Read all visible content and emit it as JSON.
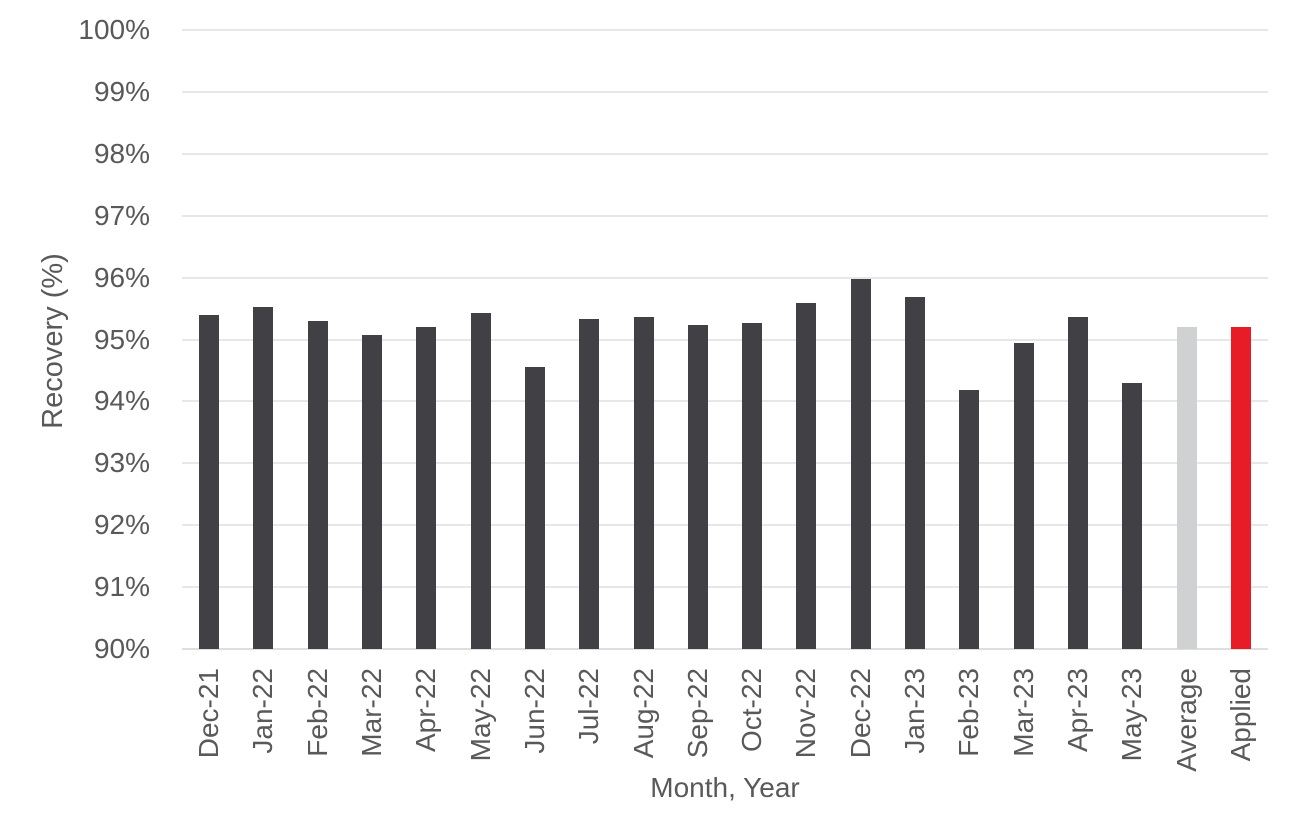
{
  "chart_data": {
    "type": "bar",
    "title": "",
    "xlabel": "Month, Year",
    "ylabel": "Recovery (%)",
    "ylim": [
      90,
      100
    ],
    "grid": true,
    "legend": false,
    "y_tick_labels": [
      "100%",
      "99%",
      "98%",
      "97%",
      "96%",
      "95%",
      "94%",
      "93%",
      "92%",
      "91%",
      "90%"
    ],
    "y_tick_values": [
      100,
      99,
      98,
      97,
      96,
      95,
      94,
      93,
      92,
      91,
      90
    ],
    "categories": [
      "Dec-21",
      "Jan-22",
      "Feb-22",
      "Mar-22",
      "Apr-22",
      "May-22",
      "Jun-22",
      "Jul-22",
      "Aug-22",
      "Sep-22",
      "Oct-22",
      "Nov-22",
      "Dec-22",
      "Jan-23",
      "Feb-23",
      "Mar-23",
      "Apr-23",
      "May-23",
      "Average",
      "Applied"
    ],
    "values": [
      95.4,
      95.53,
      95.3,
      95.08,
      95.2,
      95.43,
      94.55,
      95.33,
      95.36,
      95.23,
      95.27,
      95.59,
      95.97,
      95.68,
      94.18,
      94.94,
      95.36,
      94.3,
      95.2,
      95.2
    ],
    "bar_roles": [
      "month",
      "month",
      "month",
      "month",
      "month",
      "month",
      "month",
      "month",
      "month",
      "month",
      "month",
      "month",
      "month",
      "month",
      "month",
      "month",
      "month",
      "month",
      "average",
      "applied"
    ]
  },
  "colors": {
    "bar_month": "#404045",
    "bar_average": "#d0d1d3",
    "bar_applied": "#e81c26",
    "axis_text": "#595959",
    "gridline": "#e7e7e7",
    "axis_line": "#dedede",
    "background": "#ffffff"
  }
}
